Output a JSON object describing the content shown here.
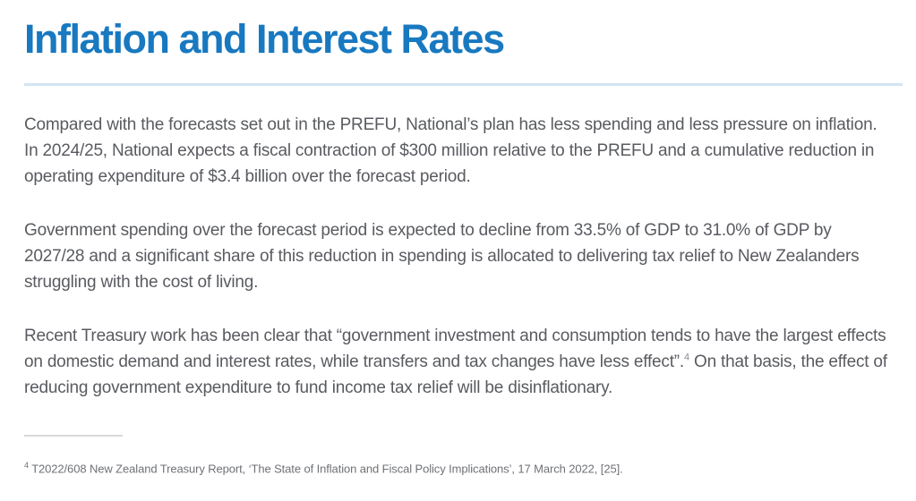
{
  "page": {
    "title": "Inflation and Interest Rates"
  },
  "paragraphs": {
    "p1": "Compared with the forecasts set out in the PREFU, National’s plan has less spending and less pressure on inflation. In 2024/25, National expects a fiscal contraction of $300 million relative to the PREFU and a cumulative reduction in operating expenditure of $3.4 billion over the forecast period.",
    "p2": "Government spending over the forecast period is expected to decline from 33.5% of GDP to 31.0% of GDP by 2027/28 and a significant share of this reduction in spending is allocated to delivering tax relief to New Zealanders struggling with the cost of living.",
    "p3_part1": "Recent Treasury work has been clear that “government investment and consumption tends to have the largest effects on domestic demand and interest rates, while transfers and tax changes have less effect”.",
    "p3_marker": "4",
    "p3_part2": " On that basis, the effect of reducing government expenditure to fund income tax relief will be disinflationary."
  },
  "footnote": {
    "marker": "4",
    "text": "T2022/608 New Zealand Treasury Report, ‘The State of Inflation and Fiscal Policy Implications’, 17 March 2022, [25]."
  },
  "colors": {
    "heading_blue": "#1879c0",
    "body_text": "#595b60",
    "heading_divider": "#d2e5f3",
    "footnote_rule": "#d8d8d8",
    "footnote_text": "#6f7175"
  }
}
